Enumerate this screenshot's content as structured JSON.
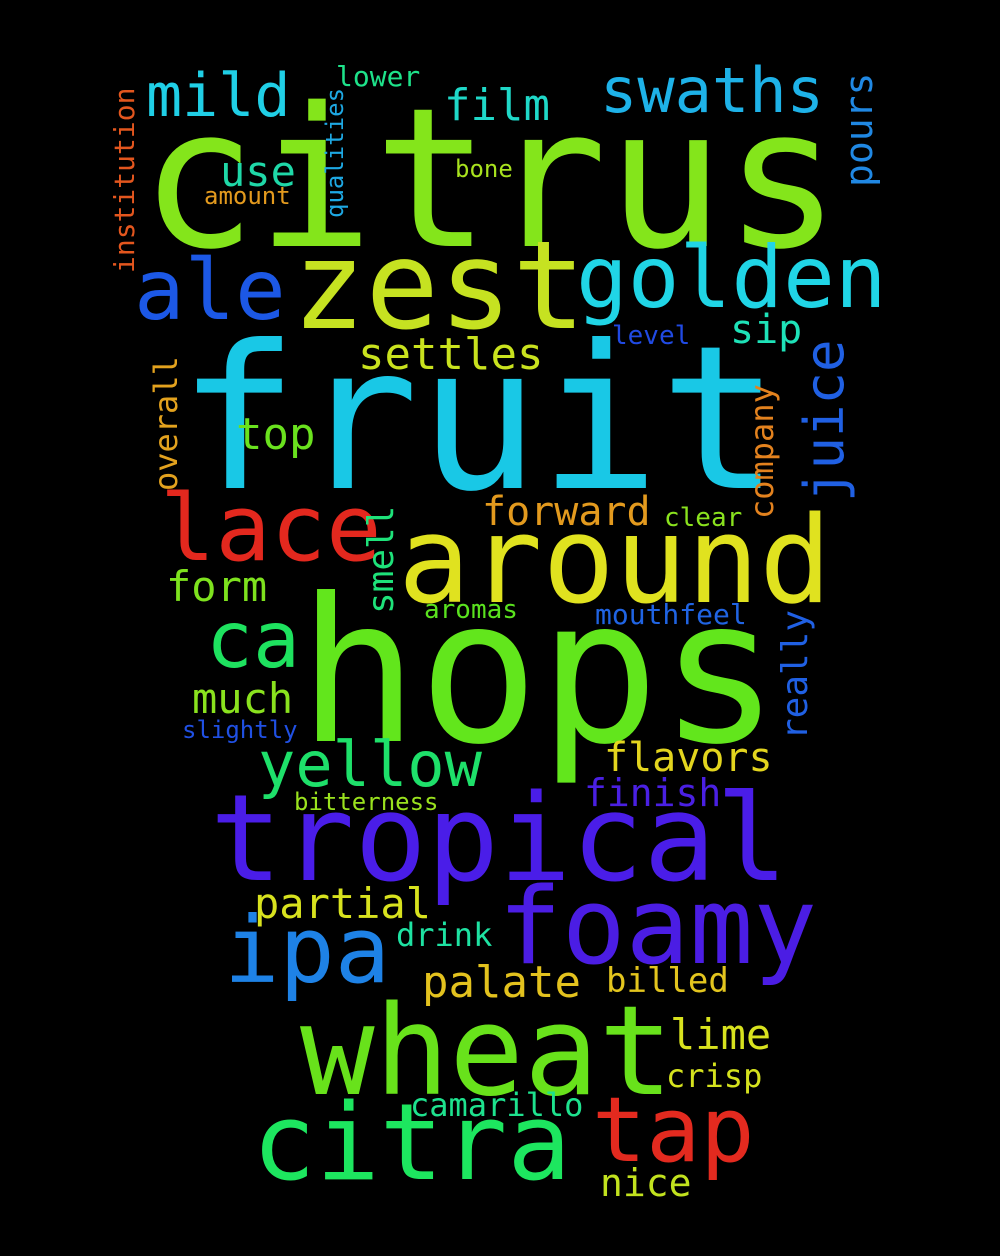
{
  "words": [
    {
      "text": "citrus",
      "color": "#84e51b",
      "vertical": false
    },
    {
      "text": "fruit",
      "color": "#19c8e6",
      "vertical": false
    },
    {
      "text": "hops",
      "color": "#62e61c",
      "vertical": false
    },
    {
      "text": "tropical",
      "color": "#4a1de8",
      "vertical": false
    },
    {
      "text": "zest",
      "color": "#c6e221",
      "vertical": false
    },
    {
      "text": "around",
      "color": "#e0e21f",
      "vertical": false
    },
    {
      "text": "wheat",
      "color": "#68e21b",
      "vertical": false
    },
    {
      "text": "foamy",
      "color": "#4b1de4",
      "vertical": false
    },
    {
      "text": "citra",
      "color": "#1de65f",
      "vertical": false
    },
    {
      "text": "golden",
      "color": "#20d5e6",
      "vertical": false
    },
    {
      "text": "ale",
      "color": "#1c58e6",
      "vertical": false
    },
    {
      "text": "lace",
      "color": "#e3281e",
      "vertical": false
    },
    {
      "text": "ipa",
      "color": "#1e82e6",
      "vertical": false
    },
    {
      "text": "tap",
      "color": "#e32a1f",
      "vertical": false
    },
    {
      "text": "ca",
      "color": "#1ee25f",
      "vertical": false
    },
    {
      "text": "yellow",
      "color": "#1ee06a",
      "vertical": false
    },
    {
      "text": "mild",
      "color": "#20cfe6",
      "vertical": false
    },
    {
      "text": "swaths",
      "color": "#1eb2e8",
      "vertical": false
    },
    {
      "text": "film",
      "color": "#1fd8c8",
      "vertical": false
    },
    {
      "text": "use",
      "color": "#1fd8a8",
      "vertical": false
    },
    {
      "text": "settles",
      "color": "#c9e21e",
      "vertical": false
    },
    {
      "text": "sip",
      "color": "#1ee2b8",
      "vertical": false
    },
    {
      "text": "top",
      "color": "#6ae21e",
      "vertical": false
    },
    {
      "text": "forward",
      "color": "#e39a1e",
      "vertical": false
    },
    {
      "text": "form",
      "color": "#7ee21e",
      "vertical": false
    },
    {
      "text": "much",
      "color": "#8ae21e",
      "vertical": false
    },
    {
      "text": "flavors",
      "color": "#e3d51e",
      "vertical": false
    },
    {
      "text": "finish",
      "color": "#4a20e3",
      "vertical": false
    },
    {
      "text": "partial",
      "color": "#d8e21e",
      "vertical": false
    },
    {
      "text": "drink",
      "color": "#1ee2a2",
      "vertical": false
    },
    {
      "text": "palate",
      "color": "#e3c21e",
      "vertical": false
    },
    {
      "text": "billed",
      "color": "#e3c51e",
      "vertical": false
    },
    {
      "text": "lime",
      "color": "#d8e21e",
      "vertical": false
    },
    {
      "text": "crisp",
      "color": "#d5e21e",
      "vertical": false
    },
    {
      "text": "camarillo",
      "color": "#1ee28e",
      "vertical": false
    },
    {
      "text": "nice",
      "color": "#c2e21e",
      "vertical": false
    },
    {
      "text": "lower",
      "color": "#1ee28a",
      "vertical": false
    },
    {
      "text": "bone",
      "color": "#a8e21e",
      "vertical": false
    },
    {
      "text": "amount",
      "color": "#e39a1e",
      "vertical": false
    },
    {
      "text": "level",
      "color": "#204ae3",
      "vertical": false
    },
    {
      "text": "clear",
      "color": "#8ae21e",
      "vertical": false
    },
    {
      "text": "aromas",
      "color": "#5ae21e",
      "vertical": false
    },
    {
      "text": "mouthfeel",
      "color": "#2064e3",
      "vertical": false
    },
    {
      "text": "slightly",
      "color": "#2050e3",
      "vertical": false
    },
    {
      "text": "bitterness",
      "color": "#9ae21e",
      "vertical": false
    },
    {
      "text": "institution",
      "color": "#e3561e",
      "vertical": true
    },
    {
      "text": "qualities",
      "color": "#1ea8e3",
      "vertical": true
    },
    {
      "text": "pours",
      "color": "#2088e3",
      "vertical": true
    },
    {
      "text": "juice",
      "color": "#2060e3",
      "vertical": true
    },
    {
      "text": "overall",
      "color": "#e3a21e",
      "vertical": true
    },
    {
      "text": "company",
      "color": "#e3821e",
      "vertical": true
    },
    {
      "text": "smell",
      "color": "#1ee27a",
      "vertical": true
    },
    {
      "text": "really",
      "color": "#2060e3",
      "vertical": true
    }
  ]
}
